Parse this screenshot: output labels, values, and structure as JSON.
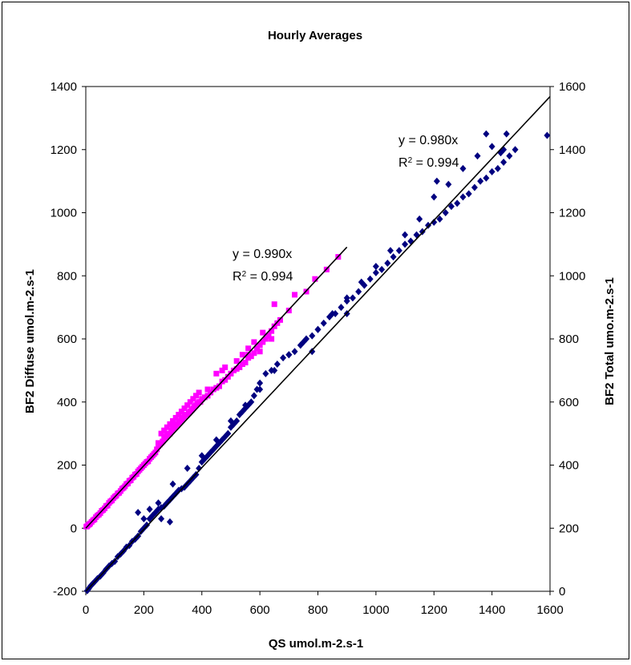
{
  "chart_data": {
    "type": "scatter",
    "title": "Hourly Averages",
    "xlabel": "QS umol.m-2.s-1",
    "ylabel_left": "BF2 Diffuse umol.m-2.s-1",
    "ylabel_right": "BF2 Total umo.m-2.s-1",
    "xlim": [
      0,
      1600
    ],
    "ylim_left": [
      -200,
      1400
    ],
    "ylim_right": [
      0,
      1600
    ],
    "x_ticks": [
      "0",
      "200",
      "400",
      "600",
      "800",
      "1000",
      "1200",
      "1400",
      "1600"
    ],
    "y_left_ticks": [
      "-200",
      "0",
      "200",
      "400",
      "600",
      "800",
      "1000",
      "1200",
      "1400"
    ],
    "y_right_ticks": [
      "0",
      "200",
      "400",
      "600",
      "800",
      "1000",
      "1200",
      "1400",
      "1600"
    ],
    "grid": false,
    "legend": "none",
    "series": [
      {
        "axis": "left",
        "color": "#FF00FF",
        "marker": "square",
        "x": [
          2,
          5,
          8,
          12,
          15,
          20,
          25,
          30,
          35,
          40,
          45,
          50,
          55,
          60,
          65,
          70,
          75,
          80,
          85,
          90,
          95,
          100,
          105,
          110,
          115,
          120,
          125,
          130,
          135,
          140,
          145,
          150,
          155,
          160,
          165,
          170,
          175,
          180,
          185,
          190,
          195,
          200,
          205,
          210,
          215,
          220,
          225,
          230,
          235,
          240,
          245,
          250,
          255,
          260,
          265,
          270,
          275,
          280,
          285,
          290,
          295,
          300,
          305,
          310,
          315,
          320,
          325,
          330,
          335,
          340,
          345,
          350,
          355,
          360,
          365,
          370,
          375,
          380,
          385,
          390,
          395,
          400,
          410,
          420,
          430,
          440,
          450,
          460,
          470,
          480,
          490,
          500,
          510,
          520,
          530,
          540,
          550,
          560,
          570,
          580,
          590,
          600,
          610,
          620,
          630,
          640,
          650,
          660,
          670,
          700,
          720,
          760,
          790,
          830,
          870,
          280,
          300,
          320,
          330,
          340,
          350,
          360,
          370,
          380,
          390,
          260,
          270,
          290,
          310,
          450,
          470,
          520,
          540,
          560,
          580,
          610,
          650,
          250,
          300,
          420,
          480,
          560,
          600,
          640
        ],
        "y": [
          5,
          6,
          10,
          12,
          15,
          20,
          25,
          28,
          35,
          40,
          43,
          48,
          55,
          58,
          63,
          70,
          72,
          80,
          85,
          88,
          95,
          100,
          103,
          110,
          112,
          118,
          125,
          128,
          133,
          140,
          142,
          150,
          152,
          160,
          163,
          170,
          172,
          180,
          185,
          190,
          195,
          200,
          205,
          210,
          212,
          220,
          225,
          230,
          235,
          240,
          250,
          260,
          265,
          270,
          275,
          285,
          290,
          295,
          300,
          300,
          310,
          315,
          320,
          325,
          330,
          335,
          340,
          345,
          350,
          355,
          360,
          360,
          365,
          370,
          375,
          380,
          385,
          390,
          395,
          400,
          400,
          410,
          415,
          420,
          430,
          440,
          445,
          450,
          465,
          470,
          480,
          490,
          500,
          505,
          510,
          520,
          525,
          540,
          545,
          555,
          570,
          580,
          590,
          600,
          610,
          625,
          640,
          650,
          660,
          690,
          740,
          750,
          790,
          820,
          860,
          320,
          340,
          360,
          370,
          380,
          390,
          400,
          410,
          420,
          430,
          300,
          310,
          330,
          350,
          490,
          500,
          530,
          550,
          570,
          590,
          620,
          710,
          270,
          330,
          440,
          510,
          550,
          560,
          600
        ]
      },
      {
        "axis": "right",
        "color": "#000080",
        "marker": "diamond",
        "x": [
          5,
          10,
          15,
          20,
          25,
          30,
          40,
          50,
          60,
          70,
          80,
          90,
          100,
          110,
          120,
          130,
          140,
          150,
          160,
          170,
          180,
          190,
          200,
          210,
          220,
          230,
          240,
          250,
          260,
          270,
          280,
          290,
          300,
          310,
          320,
          330,
          340,
          350,
          360,
          370,
          380,
          390,
          400,
          410,
          420,
          430,
          440,
          450,
          460,
          470,
          480,
          490,
          500,
          510,
          520,
          530,
          540,
          550,
          560,
          570,
          580,
          590,
          600,
          620,
          640,
          660,
          680,
          700,
          720,
          740,
          760,
          780,
          800,
          820,
          840,
          860,
          880,
          900,
          920,
          940,
          960,
          980,
          1000,
          1020,
          1040,
          1060,
          1080,
          1100,
          1120,
          1140,
          1160,
          1180,
          1200,
          1220,
          1240,
          1260,
          1280,
          1300,
          1320,
          1340,
          1360,
          1380,
          1400,
          1420,
          1440,
          1460,
          1480,
          1590,
          200,
          250,
          300,
          350,
          400,
          450,
          500,
          550,
          600,
          650,
          700,
          750,
          800,
          850,
          900,
          950,
          1000,
          1050,
          1100,
          1150,
          1200,
          1250,
          1300,
          1350,
          1400,
          1450,
          260,
          180,
          220,
          290,
          780,
          900,
          1210,
          1440,
          1430,
          1380
        ],
        "y": [
          2,
          8,
          15,
          20,
          25,
          30,
          40,
          48,
          58,
          70,
          80,
          88,
          95,
          110,
          118,
          128,
          140,
          145,
          158,
          165,
          175,
          190,
          200,
          210,
          230,
          240,
          250,
          260,
          265,
          270,
          280,
          290,
          300,
          310,
          320,
          325,
          330,
          340,
          350,
          360,
          370,
          390,
          410,
          420,
          430,
          440,
          450,
          460,
          470,
          480,
          490,
          500,
          520,
          530,
          540,
          560,
          570,
          580,
          590,
          600,
          620,
          640,
          660,
          690,
          700,
          720,
          740,
          750,
          760,
          780,
          800,
          810,
          830,
          850,
          870,
          880,
          900,
          920,
          930,
          950,
          970,
          990,
          1010,
          1020,
          1040,
          1060,
          1080,
          1100,
          1110,
          1130,
          1140,
          1160,
          1170,
          1180,
          1200,
          1220,
          1230,
          1250,
          1260,
          1280,
          1300,
          1310,
          1330,
          1340,
          1360,
          1380,
          1400,
          1445,
          230,
          280,
          340,
          390,
          430,
          480,
          540,
          590,
          640,
          700,
          750,
          790,
          830,
          880,
          930,
          980,
          1030,
          1080,
          1130,
          1180,
          1250,
          1290,
          1340,
          1380,
          1410,
          1450,
          230,
          250,
          260,
          220,
          760,
          880,
          1300,
          1400,
          1390,
          1450
        ]
      }
    ],
    "trendlines": [
      {
        "axis": "left",
        "slope": 0.99,
        "x_range": [
          0,
          900
        ],
        "label_lines": [
          "y = 0.990x",
          "R",
          "2",
          " = 0.994"
        ]
      },
      {
        "axis": "right",
        "slope": 0.98,
        "x_range": [
          0,
          1600
        ],
        "label_lines": [
          "y = 0.980x",
          "R",
          "2",
          " = 0.994"
        ]
      }
    ]
  }
}
